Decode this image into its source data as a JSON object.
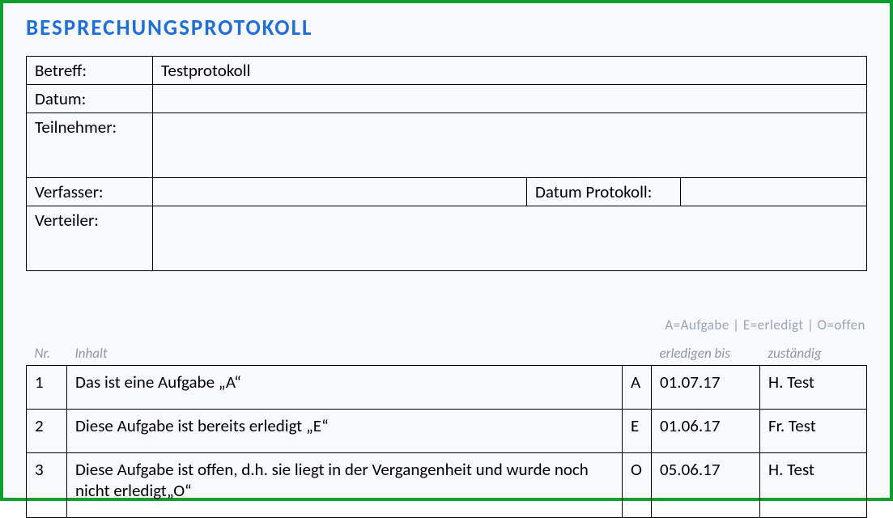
{
  "title": "BESPRECHUNGSPROTOKOLL",
  "meta": {
    "labels": {
      "betreff": "Betreff:",
      "datum": "Datum:",
      "teilnehmer": "Teilnehmer:",
      "verfasser": "Verfasser:",
      "datum_protokoll": "Datum Protokoll:",
      "verteiler": "Verteiler:"
    },
    "values": {
      "betreff": "Testprotokoll",
      "datum": "",
      "teilnehmer": "",
      "verfasser": "",
      "datum_protokoll": "",
      "verteiler": ""
    }
  },
  "legend": "A=Aufgabe  |  E=erledigt  |  O=offen",
  "items": {
    "columns": {
      "nr": "Nr.",
      "inhalt": "Inhalt",
      "type": "",
      "erledigen_bis": "erledigen bis",
      "zustaendig": "zuständig"
    },
    "rows": [
      {
        "nr": "1",
        "inhalt": "Das ist eine Aufgabe „A“",
        "type": "A",
        "erledigen_bis": "01.07.17",
        "zustaendig": "H. Test"
      },
      {
        "nr": "2",
        "inhalt": "Diese Aufgabe ist bereits erledigt „E“",
        "type": "E",
        "erledigen_bis": "01.06.17",
        "zustaendig": "Fr. Test"
      },
      {
        "nr": "3",
        "inhalt": "Diese Aufgabe ist offen, d.h. sie liegt in der Vergangenheit und wurde noch nicht erledigt„O“",
        "type": "O",
        "erledigen_bis": "05.06.17",
        "zustaendig": "H. Test"
      }
    ]
  },
  "colors": {
    "outer_border": "#0d9e2d",
    "page_bg": "#f8f9fc",
    "title": "#1f6fd4",
    "table_border": "#000000",
    "text": "#000000",
    "muted": "#8f98a9",
    "legend": "#9aa5b9"
  }
}
